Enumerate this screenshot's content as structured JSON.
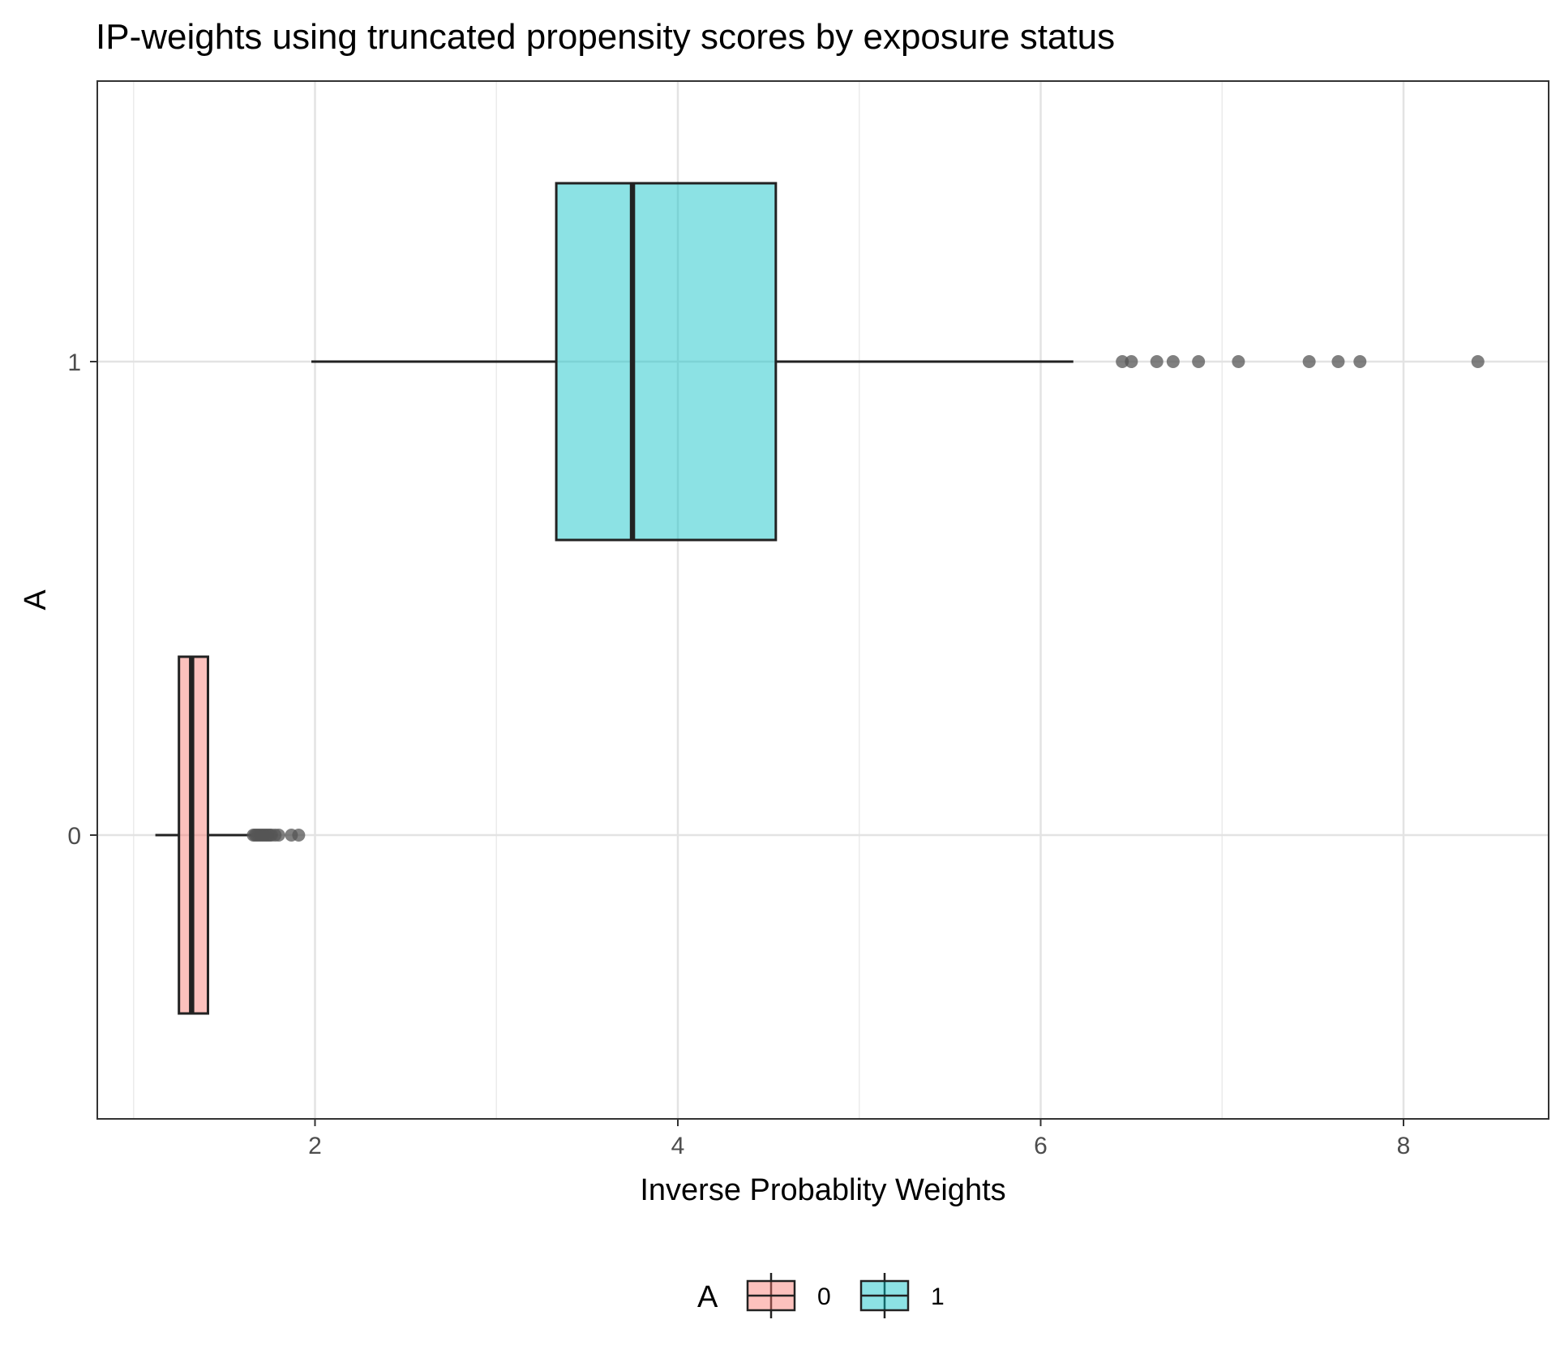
{
  "chart_data": {
    "type": "boxplot",
    "orientation": "horizontal",
    "title": "IP-weights using truncated propensity scores by exposure status",
    "xlabel": "Inverse Probablity Weights",
    "ylabel": "A",
    "xlim": [
      0.8,
      8.8
    ],
    "x_ticks": [
      2,
      4,
      6,
      8
    ],
    "x_tick_labels": [
      "2",
      "4",
      "6",
      "8"
    ],
    "x_minor_ticks": [
      1,
      3,
      5,
      7
    ],
    "categories": [
      "0",
      "1"
    ],
    "grid": true,
    "legend": {
      "title": "A",
      "position": "bottom",
      "labels": [
        "0",
        "1"
      ]
    },
    "series": [
      {
        "group": "0",
        "color": "#F8766D",
        "whisker_low": 1.12,
        "q1": 1.25,
        "median": 1.32,
        "q3": 1.41,
        "whisker_high": 1.65,
        "outliers": [
          1.66,
          1.67,
          1.68,
          1.69,
          1.7,
          1.71,
          1.72,
          1.73,
          1.74,
          1.75,
          1.76,
          1.78,
          1.8,
          1.87,
          1.91
        ]
      },
      {
        "group": "1",
        "color": "#00BFC4",
        "whisker_low": 1.98,
        "q1": 3.33,
        "median": 3.75,
        "q3": 4.54,
        "whisker_high": 6.18,
        "outliers": [
          6.45,
          6.5,
          6.64,
          6.73,
          6.87,
          7.09,
          7.48,
          7.64,
          7.76,
          8.41
        ]
      }
    ]
  }
}
